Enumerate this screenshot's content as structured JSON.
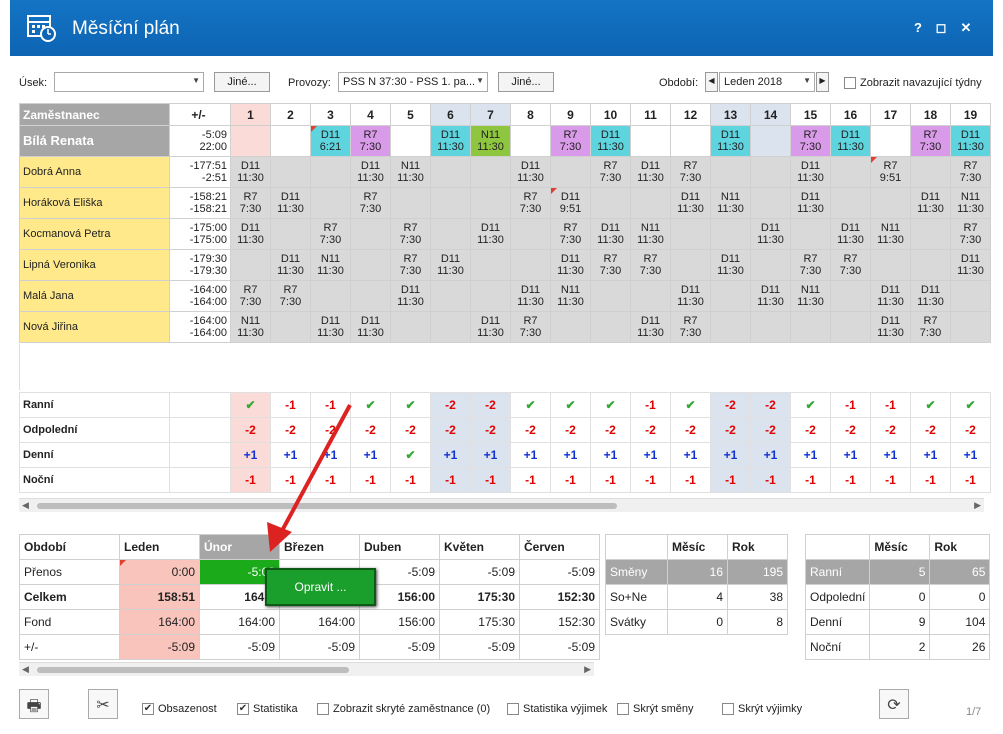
{
  "window": {
    "title": "Měsíční plán",
    "help": "?",
    "maximize": "◻",
    "close": "✕"
  },
  "filters": {
    "usek_label": "Úsek:",
    "usek_value": "",
    "jine1": "Jiné...",
    "provozy_label": "Provozy:",
    "provozy_value": "PSS N 37:30 - PSS 1. pa...",
    "jine2": "Jiné...",
    "obdobi_label": "Období:",
    "obdobi_value": "Leden 2018",
    "navazujici_label": "Zobrazit navazující týdny"
  },
  "grid": {
    "header": {
      "emp": "Zaměstnanec",
      "pm": "+/-",
      "days": [
        "1",
        "2",
        "3",
        "4",
        "5",
        "6",
        "7",
        "8",
        "9",
        "10",
        "11",
        "12",
        "13",
        "14",
        "15",
        "16",
        "17",
        "18",
        "19"
      ]
    },
    "rows": [
      {
        "name": "Bílá Renata",
        "pm1": "-5:09",
        "pm2": "22:00",
        "cells": [
          [
            "",
            ""
          ],
          [
            "",
            ""
          ],
          [
            "D11",
            "6:21"
          ],
          [
            "R7",
            "7:30"
          ],
          [
            "",
            ""
          ],
          [
            "D11",
            "11:30"
          ],
          [
            "N11",
            "11:30"
          ],
          [
            "",
            ""
          ],
          [
            "R7",
            "7:30"
          ],
          [
            "D11",
            "11:30"
          ],
          [
            "",
            ""
          ],
          [
            "",
            ""
          ],
          [
            "D11",
            "11:30"
          ],
          [
            "",
            ""
          ],
          [
            "R7",
            "7:30"
          ],
          [
            "D11",
            "11:30"
          ],
          [
            "",
            ""
          ],
          [
            "R7",
            "7:30"
          ],
          [
            "D11",
            "11:30"
          ]
        ]
      },
      {
        "name": "Dobrá Anna",
        "pm1": "-177:51",
        "pm2": "-2:51",
        "cells": [
          [
            "D11",
            "11:30"
          ],
          [
            "",
            ""
          ],
          [
            "",
            ""
          ],
          [
            "D11",
            "11:30"
          ],
          [
            "N11",
            "11:30"
          ],
          [
            "",
            ""
          ],
          [
            "",
            ""
          ],
          [
            "D11",
            "11:30"
          ],
          [
            "",
            ""
          ],
          [
            "R7",
            "7:30"
          ],
          [
            "D11",
            "11:30"
          ],
          [
            "R7",
            "7:30"
          ],
          [
            "",
            ""
          ],
          [
            "",
            ""
          ],
          [
            "D11",
            "11:30"
          ],
          [
            "",
            ""
          ],
          [
            "R7",
            "9:51"
          ],
          [
            "",
            ""
          ],
          [
            "R7",
            "7:30"
          ]
        ]
      },
      {
        "name": "Horáková Eliška",
        "pm1": "-158:21",
        "pm2": "-158:21",
        "cells": [
          [
            "R7",
            "7:30"
          ],
          [
            "D11",
            "11:30"
          ],
          [
            "",
            ""
          ],
          [
            "R7",
            "7:30"
          ],
          [
            "",
            ""
          ],
          [
            "",
            ""
          ],
          [
            "",
            ""
          ],
          [
            "R7",
            "7:30"
          ],
          [
            "D11",
            "9:51"
          ],
          [
            "",
            ""
          ],
          [
            "",
            ""
          ],
          [
            "D11",
            "11:30"
          ],
          [
            "N11",
            "11:30"
          ],
          [
            "",
            ""
          ],
          [
            "D11",
            "11:30"
          ],
          [
            "",
            ""
          ],
          [
            "",
            ""
          ],
          [
            "D11",
            "11:30"
          ],
          [
            "N11",
            "11:30"
          ]
        ]
      },
      {
        "name": "Kocmanová Petra",
        "pm1": "-175:00",
        "pm2": "-175:00",
        "cells": [
          [
            "D11",
            "11:30"
          ],
          [
            "",
            ""
          ],
          [
            "R7",
            "7:30"
          ],
          [
            "",
            ""
          ],
          [
            "R7",
            "7:30"
          ],
          [
            "",
            ""
          ],
          [
            "D11",
            "11:30"
          ],
          [
            "",
            ""
          ],
          [
            "R7",
            "7:30"
          ],
          [
            "D11",
            "11:30"
          ],
          [
            "N11",
            "11:30"
          ],
          [
            "",
            ""
          ],
          [
            "",
            ""
          ],
          [
            "D11",
            "11:30"
          ],
          [
            "",
            ""
          ],
          [
            "D11",
            "11:30"
          ],
          [
            "N11",
            "11:30"
          ],
          [
            "",
            ""
          ],
          [
            "R7",
            "7:30"
          ]
        ]
      },
      {
        "name": "Lipná Veronika",
        "pm1": "-179:30",
        "pm2": "-179:30",
        "cells": [
          [
            "",
            ""
          ],
          [
            "D11",
            "11:30"
          ],
          [
            "N11",
            "11:30"
          ],
          [
            "",
            ""
          ],
          [
            "R7",
            "7:30"
          ],
          [
            "D11",
            "11:30"
          ],
          [
            "",
            ""
          ],
          [
            "",
            ""
          ],
          [
            "D11",
            "11:30"
          ],
          [
            "R7",
            "7:30"
          ],
          [
            "R7",
            "7:30"
          ],
          [
            "",
            ""
          ],
          [
            "D11",
            "11:30"
          ],
          [
            "",
            ""
          ],
          [
            "R7",
            "7:30"
          ],
          [
            "R7",
            "7:30"
          ],
          [
            "",
            ""
          ],
          [
            "",
            ""
          ],
          [
            "D11",
            "11:30"
          ]
        ]
      },
      {
        "name": "Malá Jana",
        "pm1": "-164:00",
        "pm2": "-164:00",
        "cells": [
          [
            "R7",
            "7:30"
          ],
          [
            "R7",
            "7:30"
          ],
          [
            "",
            ""
          ],
          [
            "",
            ""
          ],
          [
            "D11",
            "11:30"
          ],
          [
            "",
            ""
          ],
          [
            "",
            ""
          ],
          [
            "D11",
            "11:30"
          ],
          [
            "N11",
            "11:30"
          ],
          [
            "",
            ""
          ],
          [
            "",
            ""
          ],
          [
            "D11",
            "11:30"
          ],
          [
            "",
            ""
          ],
          [
            "D11",
            "11:30"
          ],
          [
            "N11",
            "11:30"
          ],
          [
            "",
            ""
          ],
          [
            "D11",
            "11:30"
          ],
          [
            "D11",
            "11:30"
          ],
          [
            "",
            ""
          ]
        ]
      },
      {
        "name": "Nová Jiřina",
        "pm1": "-164:00",
        "pm2": "-164:00",
        "cells": [
          [
            "N11",
            "11:30"
          ],
          [
            "",
            ""
          ],
          [
            "D11",
            "11:30"
          ],
          [
            "D11",
            "11:30"
          ],
          [
            "",
            ""
          ],
          [
            "",
            ""
          ],
          [
            "D11",
            "11:30"
          ],
          [
            "R7",
            "7:30"
          ],
          [
            "",
            ""
          ],
          [
            "",
            ""
          ],
          [
            "D11",
            "11:30"
          ],
          [
            "R7",
            "7:30"
          ],
          [
            "",
            ""
          ],
          [
            "",
            ""
          ],
          [
            "",
            ""
          ],
          [
            "",
            ""
          ],
          [
            "D11",
            "11:30"
          ],
          [
            "R7",
            "7:30"
          ],
          [
            "",
            ""
          ]
        ]
      }
    ]
  },
  "summary": [
    {
      "label": "Ranní",
      "vals": [
        "✔",
        "-1",
        "-1",
        "✔",
        "✔",
        "-2",
        "-2",
        "✔",
        "✔",
        "✔",
        "-1",
        "✔",
        "-2",
        "-2",
        "✔",
        "-1",
        "-1",
        "✔",
        "✔"
      ]
    },
    {
      "label": "Odpolední",
      "vals": [
        "-2",
        "-2",
        "-2",
        "-2",
        "-2",
        "-2",
        "-2",
        "-2",
        "-2",
        "-2",
        "-2",
        "-2",
        "-2",
        "-2",
        "-2",
        "-2",
        "-2",
        "-2",
        "-2"
      ]
    },
    {
      "label": "Denní",
      "vals": [
        "+1",
        "+1",
        "+1",
        "+1",
        "✔",
        "+1",
        "+1",
        "+1",
        "+1",
        "+1",
        "+1",
        "+1",
        "+1",
        "+1",
        "+1",
        "+1",
        "+1",
        "+1",
        "+1"
      ]
    },
    {
      "label": "Noční",
      "vals": [
        "-1",
        "-1",
        "-1",
        "-1",
        "-1",
        "-1",
        "-1",
        "-1",
        "-1",
        "-1",
        "-1",
        "-1",
        "-1",
        "-1",
        "-1",
        "-1",
        "-1",
        "-1",
        "-1"
      ]
    }
  ],
  "period": {
    "header": [
      "Období",
      "Leden",
      "Únor",
      "Březen",
      "Duben",
      "Květen",
      "Červen"
    ],
    "rows": [
      {
        "label": "Přenos",
        "vals": [
          "0:00",
          "-5:09",
          "",
          "-5:09",
          "-5:09",
          "-5:09"
        ]
      },
      {
        "label": "Celkem",
        "vals": [
          "158:51",
          "164:0",
          "",
          "156:00",
          "175:30",
          "152:30"
        ]
      },
      {
        "label": "Fond",
        "vals": [
          "164:00",
          "164:00",
          "164:00",
          "156:00",
          "175:30",
          "152:30"
        ]
      },
      {
        "label": "+/-",
        "vals": [
          "-5:09",
          "-5:09",
          "-5:09",
          "-5:09",
          "-5:09",
          "-5:09"
        ]
      }
    ]
  },
  "popup": {
    "label": "Opravit ..."
  },
  "stats1": {
    "header": [
      "",
      "Měsíc",
      "Rok"
    ],
    "rows": [
      [
        "Směny",
        "16",
        "195"
      ],
      [
        "So+Ne",
        "4",
        "38"
      ],
      [
        "Svátky",
        "0",
        "8"
      ]
    ]
  },
  "stats2": {
    "header": [
      "",
      "Měsíc",
      "Rok"
    ],
    "rows": [
      [
        "Ranní",
        "5",
        "65"
      ],
      [
        "Odpolední",
        "0",
        "0"
      ],
      [
        "Denní",
        "9",
        "104"
      ],
      [
        "Noční",
        "2",
        "26"
      ]
    ]
  },
  "footer": {
    "obsazenost": "Obsazenost",
    "statistika": "Statistika",
    "skryte": "Zobrazit skryté zaměstnance (0)",
    "stat_vyjimek": "Statistika výjimek",
    "skryt_smeny": "Skrýt směny",
    "skryt_vyjimky": "Skrýt výjimky",
    "page": "1/7"
  }
}
